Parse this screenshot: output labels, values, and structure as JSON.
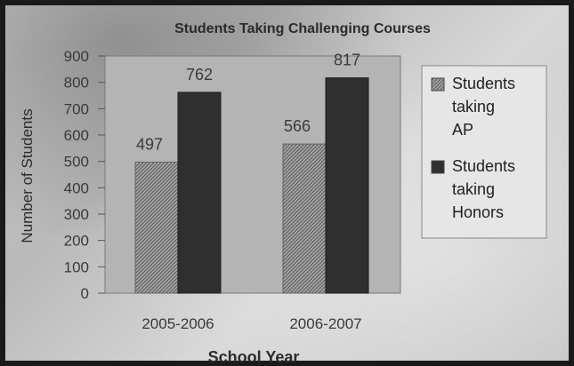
{
  "colors": {
    "ap": "#9a9a9a",
    "honors": "#2f2f2f",
    "plot_bg": "#b4b4b4",
    "legend_bg": "#e6e6e6"
  },
  "chart_data": {
    "type": "bar",
    "title": "Students Taking Challenging Courses",
    "xlabel": "School Year",
    "ylabel": "Number of Students",
    "categories": [
      "2005-2006",
      "2006-2007"
    ],
    "ylim": [
      0,
      900
    ],
    "yticks": [
      0,
      100,
      200,
      300,
      400,
      500,
      600,
      700,
      800,
      900
    ],
    "grid": false,
    "legend_position": "right",
    "series": [
      {
        "name": "Students taking AP",
        "values": [
          497,
          566
        ],
        "legend_lines": [
          "Students",
          "taking",
          "AP"
        ]
      },
      {
        "name": "Students taking Honors",
        "values": [
          762,
          817
        ],
        "legend_lines": [
          "Students",
          "taking",
          "Honors"
        ]
      }
    ]
  }
}
